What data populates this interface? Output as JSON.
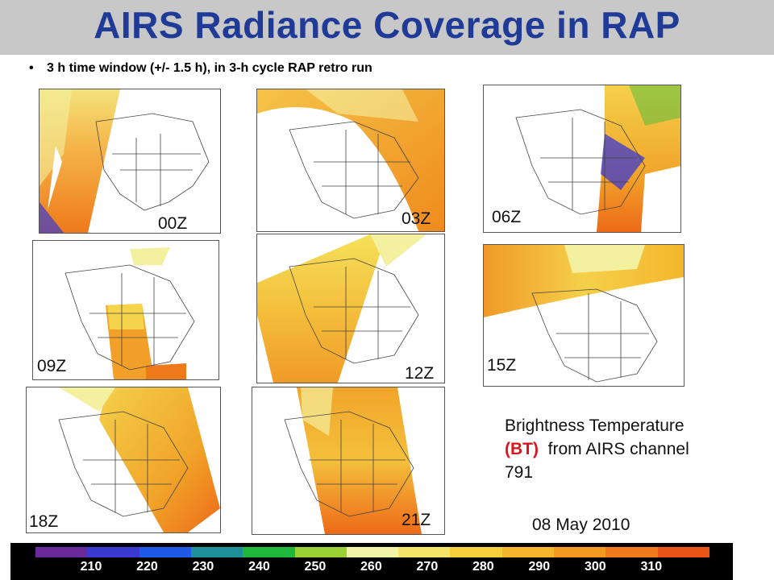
{
  "title": "AIRS Radiance Coverage in RAP",
  "bullet": "3 h time window (+/- 1.5 h), in 3-h cycle RAP retro run",
  "bullet_symbol": "•",
  "maps": [
    {
      "id": "00Z",
      "label": "00Z"
    },
    {
      "id": "03Z",
      "label": "03Z"
    },
    {
      "id": "06Z",
      "label": "06Z"
    },
    {
      "id": "09Z",
      "label": "09Z"
    },
    {
      "id": "12Z",
      "label": "12Z"
    },
    {
      "id": "15Z",
      "label": "15Z"
    },
    {
      "id": "18Z",
      "label": "18Z"
    },
    {
      "id": "21Z",
      "label": "21Z"
    }
  ],
  "note": {
    "line1": "Brightness Temperature",
    "bt": "(BT)",
    "line2_rest": "from AIRS channel",
    "line3": "791"
  },
  "date": "08 May 2010",
  "colorbar": {
    "ticks": [
      "210",
      "220",
      "230",
      "240",
      "250",
      "260",
      "270",
      "280",
      "290",
      "300",
      "310"
    ],
    "colors": [
      "#6a2a9a",
      "#3a3ad0",
      "#1e5ae6",
      "#1f8f9a",
      "#1fb83c",
      "#9ad235",
      "#f3f3a8",
      "#f4e56a",
      "#f5cf3c",
      "#f4b62c",
      "#f29a22",
      "#ee7a1a",
      "#e85516"
    ]
  },
  "colors": {
    "title": "#1f3b97",
    "title_bar": "#c8c8c8",
    "bt_highlight": "#d8161e"
  }
}
